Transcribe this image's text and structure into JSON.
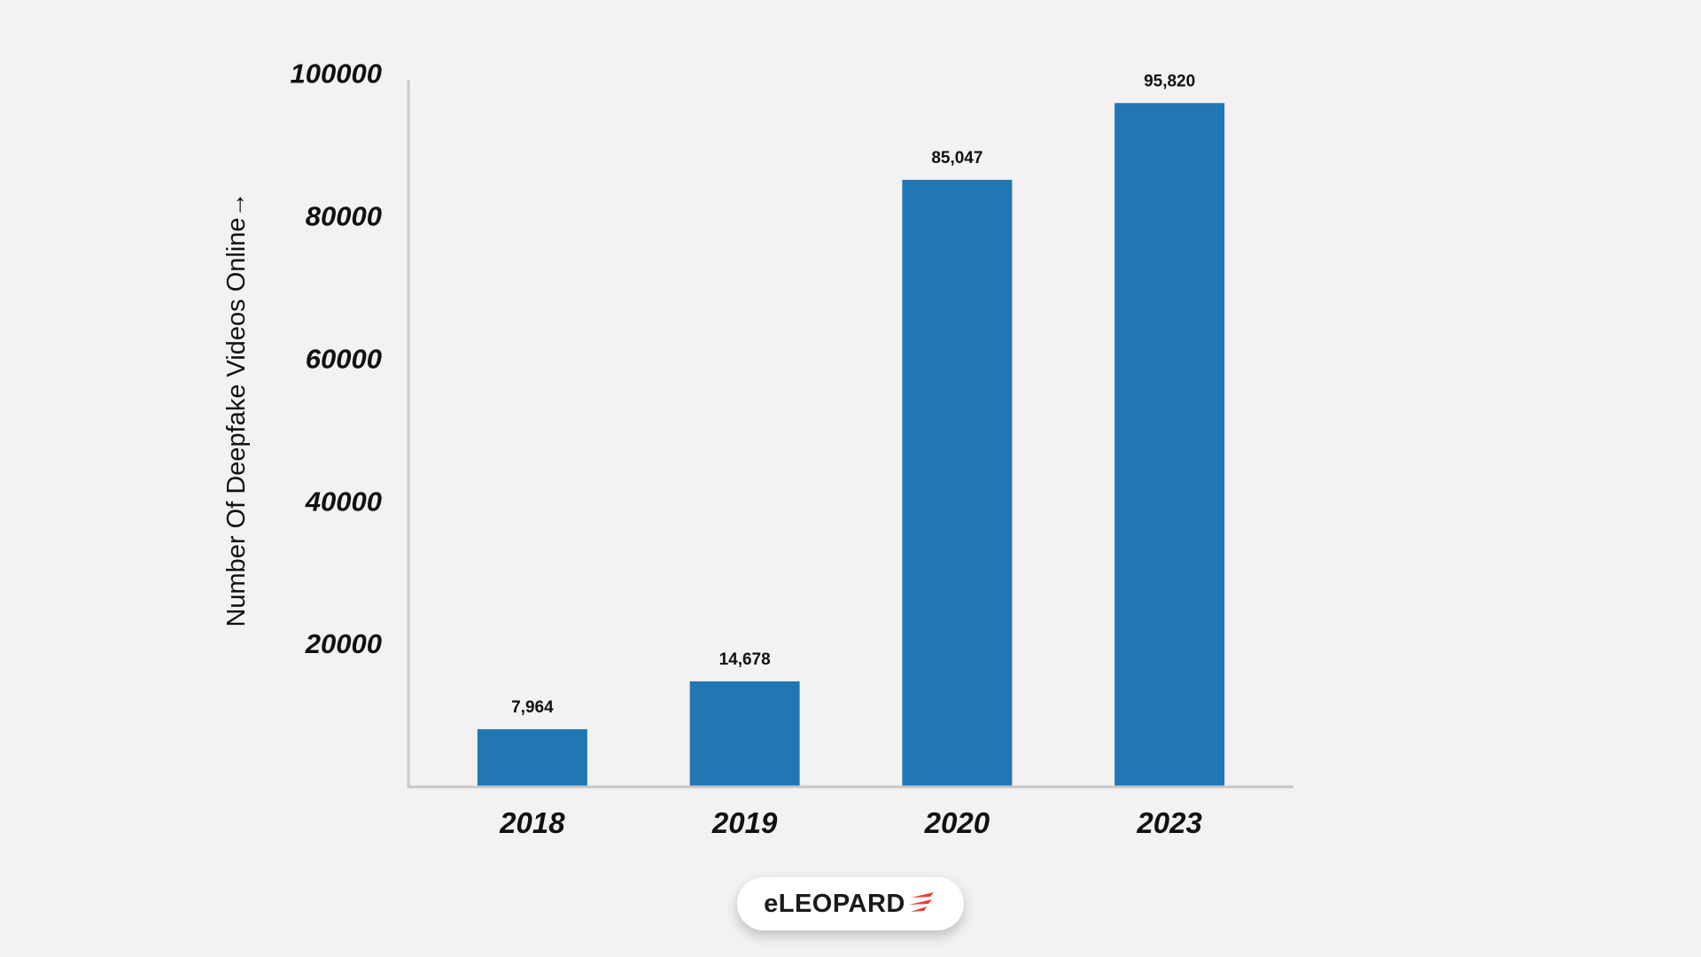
{
  "chart_data": {
    "type": "bar",
    "categories": [
      "2018",
      "2019",
      "2020",
      "2023"
    ],
    "values": [
      7964,
      14678,
      85047,
      95820
    ],
    "data_labels": [
      "7,964",
      "14,678",
      "85,047",
      "95,820"
    ],
    "title": "",
    "xlabel": "",
    "ylabel": "Number Of Deepfake Videos Online→",
    "yticks": [
      "20000",
      "40000",
      "60000",
      "80000",
      "100000"
    ],
    "ylim": [
      0,
      100000
    ],
    "grid": false,
    "legend": "none",
    "bar_color": "#2077b4"
  },
  "logo": {
    "text": "eLEOPARD",
    "accent_color": "#e8402e"
  }
}
